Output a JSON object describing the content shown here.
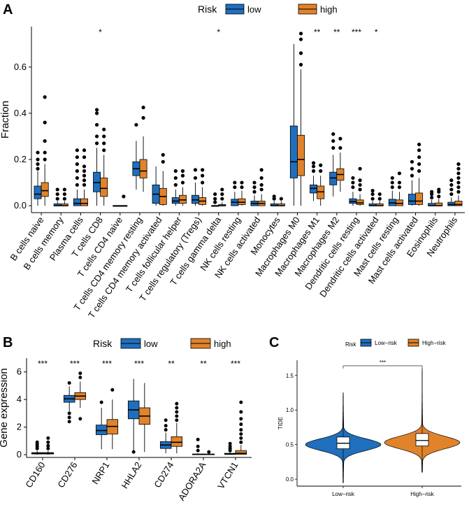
{
  "colors": {
    "low": "#1f6fbd",
    "high": "#e1832a",
    "axis": "#000000",
    "point": "#000000"
  },
  "chart_data": [
    {
      "panel": "A",
      "type": "boxplot",
      "ylabel": "Fraction",
      "xlabel": "",
      "ylim": [
        -0.03,
        0.775
      ],
      "yticks": [
        0.0,
        0.2,
        0.4,
        0.6
      ],
      "ytick_labels": [
        "0.0",
        "0.2",
        "0.4",
        "0.6"
      ],
      "legend": {
        "title": "Risk",
        "entries": [
          "low",
          "high"
        ],
        "position": "top"
      },
      "categories": [
        "B cells naive",
        "B cells memory",
        "Plasma cells",
        "T cells CD8",
        "T cells CD4 naive",
        "T cells CD4 memory resting",
        "T cells CD4 memory activated",
        "T cells follicular helper",
        "T cells regulatory (Tregs)",
        "T cells gamma delta",
        "NK cells resting",
        "NK cells activated",
        "Monocytes",
        "Macrophages M0",
        "Macrophages M1",
        "Macrophages M2",
        "Dendritic cells resting",
        "Dendritic cells activated",
        "Mast cells resting",
        "Mast cells activated",
        "Eosinophils",
        "Neutrophils"
      ],
      "significance": [
        "",
        "",
        "",
        "*",
        "",
        "",
        "",
        "",
        "",
        "*",
        "",
        "",
        "",
        "",
        "**",
        "**",
        "***",
        "*",
        "",
        "",
        "",
        ""
      ],
      "series": [
        {
          "name": "low",
          "boxes": [
            {
              "min": 0.0,
              "q1": 0.03,
              "median": 0.05,
              "q3": 0.085,
              "max": 0.15,
              "outliers": [
                0.16,
                0.18,
                0.2,
                0.23
              ]
            },
            {
              "min": 0.0,
              "q1": 0.0,
              "median": 0.0,
              "q3": 0.008,
              "max": 0.02,
              "outliers": [
                0.03,
                0.05,
                0.07
              ]
            },
            {
              "min": 0.0,
              "q1": 0.0,
              "median": 0.01,
              "q3": 0.03,
              "max": 0.07,
              "outliers": [
                0.09,
                0.12,
                0.15,
                0.18,
                0.21,
                0.24
              ]
            },
            {
              "min": 0.0,
              "q1": 0.06,
              "median": 0.1,
              "q3": 0.145,
              "max": 0.25,
              "outliers": [
                0.27,
                0.3,
                0.35,
                0.4,
                0.415
              ]
            },
            {
              "min": 0.0,
              "q1": 0.0,
              "median": 0.0,
              "q3": 0.0,
              "max": 0.0,
              "outliers": []
            },
            {
              "min": 0.07,
              "q1": 0.13,
              "median": 0.16,
              "q3": 0.19,
              "max": 0.28,
              "outliers": [
                0.35
              ]
            },
            {
              "min": 0.0,
              "q1": 0.01,
              "median": 0.05,
              "q3": 0.09,
              "max": 0.17,
              "outliers": []
            },
            {
              "min": 0.0,
              "q1": 0.01,
              "median": 0.02,
              "q3": 0.035,
              "max": 0.07,
              "outliers": [
                0.09,
                0.12,
                0.15
              ]
            },
            {
              "min": 0.0,
              "q1": 0.01,
              "median": 0.025,
              "q3": 0.045,
              "max": 0.1,
              "outliers": [
                0.12,
                0.155
              ]
            },
            {
              "min": 0.0,
              "q1": 0.0,
              "median": 0.0,
              "q3": 0.0,
              "max": 0.0,
              "outliers": [
                0.015,
                0.03,
                0.05
              ]
            },
            {
              "min": 0.0,
              "q1": 0.0,
              "median": 0.015,
              "q3": 0.028,
              "max": 0.06,
              "outliers": [
                0.08,
                0.1
              ]
            },
            {
              "min": 0.0,
              "q1": 0.0,
              "median": 0.01,
              "q3": 0.02,
              "max": 0.045,
              "outliers": [
                0.06,
                0.08,
                0.1
              ]
            },
            {
              "min": 0.0,
              "q1": 0.0,
              "median": 0.0,
              "q3": 0.008,
              "max": 0.02,
              "outliers": [
                0.03,
                0.04
              ]
            },
            {
              "min": 0.0,
              "q1": 0.12,
              "median": 0.19,
              "q3": 0.345,
              "max": 0.7,
              "outliers": []
            },
            {
              "min": 0.02,
              "q1": 0.055,
              "median": 0.075,
              "q3": 0.09,
              "max": 0.13,
              "outliers": [
                0.15,
                0.17,
                0.185
              ]
            },
            {
              "min": 0.04,
              "q1": 0.09,
              "median": 0.12,
              "q3": 0.145,
              "max": 0.22,
              "outliers": [
                0.25,
                0.28,
                0.31
              ]
            },
            {
              "min": 0.0,
              "q1": 0.01,
              "median": 0.018,
              "q3": 0.03,
              "max": 0.06,
              "outliers": [
                0.08,
                0.1,
                0.12
              ]
            },
            {
              "min": 0.0,
              "q1": 0.0,
              "median": 0.0,
              "q3": 0.008,
              "max": 0.02,
              "outliers": [
                0.03,
                0.05,
                0.065
              ]
            },
            {
              "min": 0.0,
              "q1": 0.0,
              "median": 0.012,
              "q3": 0.028,
              "max": 0.065,
              "outliers": [
                0.08,
                0.1,
                0.12
              ]
            },
            {
              "min": 0.0,
              "q1": 0.005,
              "median": 0.02,
              "q3": 0.05,
              "max": 0.11,
              "outliers": [
                0.13,
                0.16,
                0.19
              ]
            },
            {
              "min": 0.0,
              "q1": 0.0,
              "median": 0.0,
              "q3": 0.01,
              "max": 0.025,
              "outliers": [
                0.035,
                0.05,
                0.06
              ]
            },
            {
              "min": 0.0,
              "q1": 0.0,
              "median": 0.005,
              "q3": 0.015,
              "max": 0.035,
              "outliers": [
                0.05,
                0.07,
                0.09,
                0.11
              ]
            }
          ]
        },
        {
          "name": "high",
          "boxes": [
            {
              "min": 0.0,
              "q1": 0.04,
              "median": 0.065,
              "q3": 0.1,
              "max": 0.18,
              "outliers": [
                0.2,
                0.23,
                0.28,
                0.36,
                0.47
              ]
            },
            {
              "min": 0.0,
              "q1": 0.0,
              "median": 0.0,
              "q3": 0.008,
              "max": 0.02,
              "outliers": [
                0.03,
                0.05,
                0.07
              ]
            },
            {
              "min": 0.0,
              "q1": 0.0,
              "median": 0.01,
              "q3": 0.03,
              "max": 0.07,
              "outliers": [
                0.09,
                0.11,
                0.13,
                0.15,
                0.17,
                0.21,
                0.24
              ]
            },
            {
              "min": 0.0,
              "q1": 0.04,
              "median": 0.075,
              "q3": 0.12,
              "max": 0.22,
              "outliers": [
                0.24,
                0.27,
                0.3,
                0.33
              ]
            },
            {
              "min": 0.0,
              "q1": 0.0,
              "median": 0.0,
              "q3": 0.0,
              "max": 0.0,
              "outliers": [
                0.04
              ]
            },
            {
              "min": 0.06,
              "q1": 0.12,
              "median": 0.15,
              "q3": 0.2,
              "max": 0.3,
              "outliers": [
                0.38,
                0.425
              ]
            },
            {
              "min": 0.0,
              "q1": 0.005,
              "median": 0.04,
              "q3": 0.075,
              "max": 0.15,
              "outliers": [
                0.19,
                0.22
              ]
            },
            {
              "min": 0.0,
              "q1": 0.01,
              "median": 0.025,
              "q3": 0.045,
              "max": 0.08,
              "outliers": [
                0.1,
                0.13,
                0.15
              ]
            },
            {
              "min": 0.0,
              "q1": 0.005,
              "median": 0.02,
              "q3": 0.035,
              "max": 0.08,
              "outliers": [
                0.1,
                0.13,
                0.155
              ]
            },
            {
              "min": 0.0,
              "q1": 0.0,
              "median": 0.0,
              "q3": 0.005,
              "max": 0.015,
              "outliers": [
                0.03,
                0.05,
                0.07
              ]
            },
            {
              "min": 0.0,
              "q1": 0.005,
              "median": 0.015,
              "q3": 0.03,
              "max": 0.065,
              "outliers": [
                0.08,
                0.1
              ]
            },
            {
              "min": 0.0,
              "q1": 0.0,
              "median": 0.01,
              "q3": 0.02,
              "max": 0.05,
              "outliers": [
                0.07,
                0.09,
                0.12,
                0.155
              ]
            },
            {
              "min": 0.0,
              "q1": 0.0,
              "median": 0.0,
              "q3": 0.008,
              "max": 0.02,
              "outliers": [
                0.03
              ]
            },
            {
              "min": 0.0,
              "q1": 0.13,
              "median": 0.2,
              "q3": 0.305,
              "max": 0.59,
              "outliers": [
                0.61,
                0.66,
                0.72,
                0.745
              ]
            },
            {
              "min": 0.0,
              "q1": 0.03,
              "median": 0.06,
              "q3": 0.085,
              "max": 0.13,
              "outliers": [
                0.15,
                0.175
              ]
            },
            {
              "min": 0.06,
              "q1": 0.11,
              "median": 0.135,
              "q3": 0.16,
              "max": 0.23,
              "outliers": [
                0.25,
                0.29
              ]
            },
            {
              "min": 0.0,
              "q1": 0.005,
              "median": 0.012,
              "q3": 0.025,
              "max": 0.05,
              "outliers": [
                0.07,
                0.09,
                0.11,
                0.16
              ]
            },
            {
              "min": 0.0,
              "q1": 0.0,
              "median": 0.0,
              "q3": 0.008,
              "max": 0.02,
              "outliers": [
                0.03,
                0.05
              ]
            },
            {
              "min": 0.0,
              "q1": 0.0,
              "median": 0.01,
              "q3": 0.025,
              "max": 0.06,
              "outliers": [
                0.08,
                0.1,
                0.14
              ]
            },
            {
              "min": 0.0,
              "q1": 0.005,
              "median": 0.02,
              "q3": 0.055,
              "max": 0.12,
              "outliers": [
                0.15,
                0.18,
                0.21,
                0.24,
                0.265
              ]
            },
            {
              "min": 0.0,
              "q1": 0.0,
              "median": 0.0,
              "q3": 0.012,
              "max": 0.03,
              "outliers": [
                0.04,
                0.06,
                0.07
              ]
            },
            {
              "min": 0.0,
              "q1": 0.0,
              "median": 0.005,
              "q3": 0.02,
              "max": 0.045,
              "outliers": [
                0.06,
                0.08,
                0.1,
                0.12,
                0.14,
                0.16,
                0.18
              ]
            }
          ]
        }
      ]
    },
    {
      "panel": "B",
      "type": "boxplot",
      "ylabel": "Gene expression",
      "xlabel": "",
      "ylim": [
        -0.2,
        7.0
      ],
      "yticks": [
        0,
        2,
        4,
        6
      ],
      "ytick_labels": [
        "0",
        "2",
        "4",
        "6"
      ],
      "legend": {
        "title": "Risk",
        "entries": [
          "low",
          "high"
        ],
        "position": "top"
      },
      "categories": [
        "CD160",
        "CD276",
        "NRP1",
        "HHLA2",
        "CD274",
        "ADORA2A",
        "VTCN1"
      ],
      "significance": [
        "***",
        "***",
        "***",
        "***",
        "**",
        "**",
        "***"
      ],
      "series": [
        {
          "name": "low",
          "boxes": [
            {
              "min": 0.0,
              "q1": 0.05,
              "median": 0.1,
              "q3": 0.15,
              "max": 0.3,
              "outliers": [
                0.45,
                0.6,
                0.75,
                0.9
              ]
            },
            {
              "min": 3.15,
              "q1": 3.8,
              "median": 4.05,
              "q3": 4.3,
              "max": 4.95,
              "outliers": [
                2.4,
                2.7,
                3.0,
                5.2
              ]
            },
            {
              "min": 0.4,
              "q1": 1.45,
              "median": 1.75,
              "q3": 2.15,
              "max": 3.4,
              "outliers": [
                3.8
              ]
            },
            {
              "min": 0.2,
              "q1": 2.6,
              "median": 3.25,
              "q3": 3.9,
              "max": 5.5,
              "outliers": [
                0.2
              ]
            },
            {
              "min": 0.1,
              "q1": 0.45,
              "median": 0.7,
              "q3": 0.95,
              "max": 1.6,
              "outliers": [
                1.8,
                2.1,
                2.5
              ]
            },
            {
              "min": 0.0,
              "q1": 0.0,
              "median": 0.02,
              "q3": 0.05,
              "max": 0.1,
              "outliers": [
                0.3,
                0.6,
                1.1
              ]
            },
            {
              "min": 0.0,
              "q1": 0.02,
              "median": 0.05,
              "q3": 0.1,
              "max": 0.2,
              "outliers": [
                0.3,
                0.45,
                0.6,
                0.8
              ]
            }
          ]
        },
        {
          "name": "high",
          "boxes": [
            {
              "min": 0.0,
              "q1": 0.05,
              "median": 0.1,
              "q3": 0.15,
              "max": 0.3,
              "outliers": [
                0.45,
                0.65,
                0.9,
                1.2
              ]
            },
            {
              "min": 3.4,
              "q1": 4.0,
              "median": 4.25,
              "q3": 4.5,
              "max": 5.3,
              "outliers": [
                2.6,
                5.6,
                5.9
              ]
            },
            {
              "min": 0.4,
              "q1": 1.5,
              "median": 2.05,
              "q3": 2.55,
              "max": 4.0,
              "outliers": [
                4.7
              ]
            },
            {
              "min": 0.2,
              "q1": 2.2,
              "median": 2.8,
              "q3": 3.4,
              "max": 5.2,
              "outliers": []
            },
            {
              "min": 0.1,
              "q1": 0.6,
              "median": 0.9,
              "q3": 1.3,
              "max": 2.3,
              "outliers": [
                2.5,
                2.8,
                3.1,
                3.4,
                3.7
              ]
            },
            {
              "min": 0.0,
              "q1": 0.0,
              "median": 0.02,
              "q3": 0.05,
              "max": 0.1,
              "outliers": [
                0.2
              ]
            },
            {
              "min": 0.0,
              "q1": 0.03,
              "median": 0.1,
              "q3": 0.3,
              "max": 0.7,
              "outliers": [
                0.9,
                1.2,
                1.5,
                1.8,
                2.2,
                2.6,
                3.1,
                3.8
              ]
            }
          ]
        }
      ]
    },
    {
      "panel": "C",
      "type": "violin",
      "ylabel": "TIDE",
      "xlabel": "",
      "ylim": [
        -0.1,
        1.72
      ],
      "yticks": [
        0.0,
        0.5,
        1.0,
        1.5
      ],
      "ytick_labels": [
        "0.0",
        "0.5",
        "1.0",
        "1.5"
      ],
      "legend": {
        "title": "Risk",
        "entries": [
          "Low−risk",
          "High−risk"
        ],
        "position": "top"
      },
      "categories": [
        "Low−risk",
        "High−risk"
      ],
      "comparison_label": "***",
      "series": [
        {
          "name": "Low−risk",
          "min": -0.05,
          "q1": 0.44,
          "median": 0.52,
          "q3": 0.61,
          "max": 1.25,
          "peak": 0.5
        },
        {
          "name": "High−risk",
          "min": 0.1,
          "q1": 0.48,
          "median": 0.56,
          "q3": 0.66,
          "max": 1.6,
          "peak": 0.53
        }
      ]
    }
  ]
}
